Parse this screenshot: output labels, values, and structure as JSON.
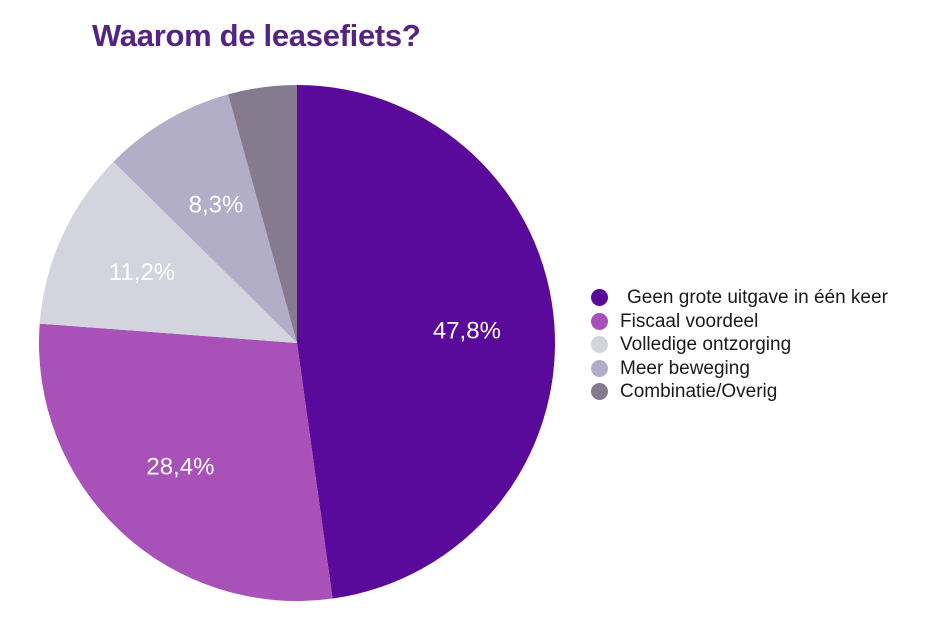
{
  "colors": {
    "background": "#ffffff",
    "title": "#552483",
    "legend_text": "#1a1a1a",
    "percent_label": "#ffffff"
  },
  "chart_data": {
    "type": "pie",
    "title": "Waarom de leasefiets?",
    "categories": [
      "Geen grote uitgave in één keer",
      "Fiscaal voordeel",
      "Volledige ontzorging",
      "Meer beweging",
      "Combinatie/Overig"
    ],
    "values": [
      47.8,
      28.4,
      11.2,
      8.3,
      4.3
    ],
    "display_values": [
      "47,8%",
      "28,4%",
      "11,2%",
      "8,3%",
      ""
    ],
    "colors": [
      "#5A0A9B",
      "#A851B8",
      "#D4D4DF",
      "#B3AEC7",
      "#867B8E"
    ],
    "label_radius_fractions": [
      0.66,
      0.66,
      0.66,
      0.62,
      0
    ],
    "start_angle_deg": 0,
    "direction": "clockwise",
    "legend_position": "right",
    "value_suffix": "%",
    "decimal_separator": ","
  }
}
